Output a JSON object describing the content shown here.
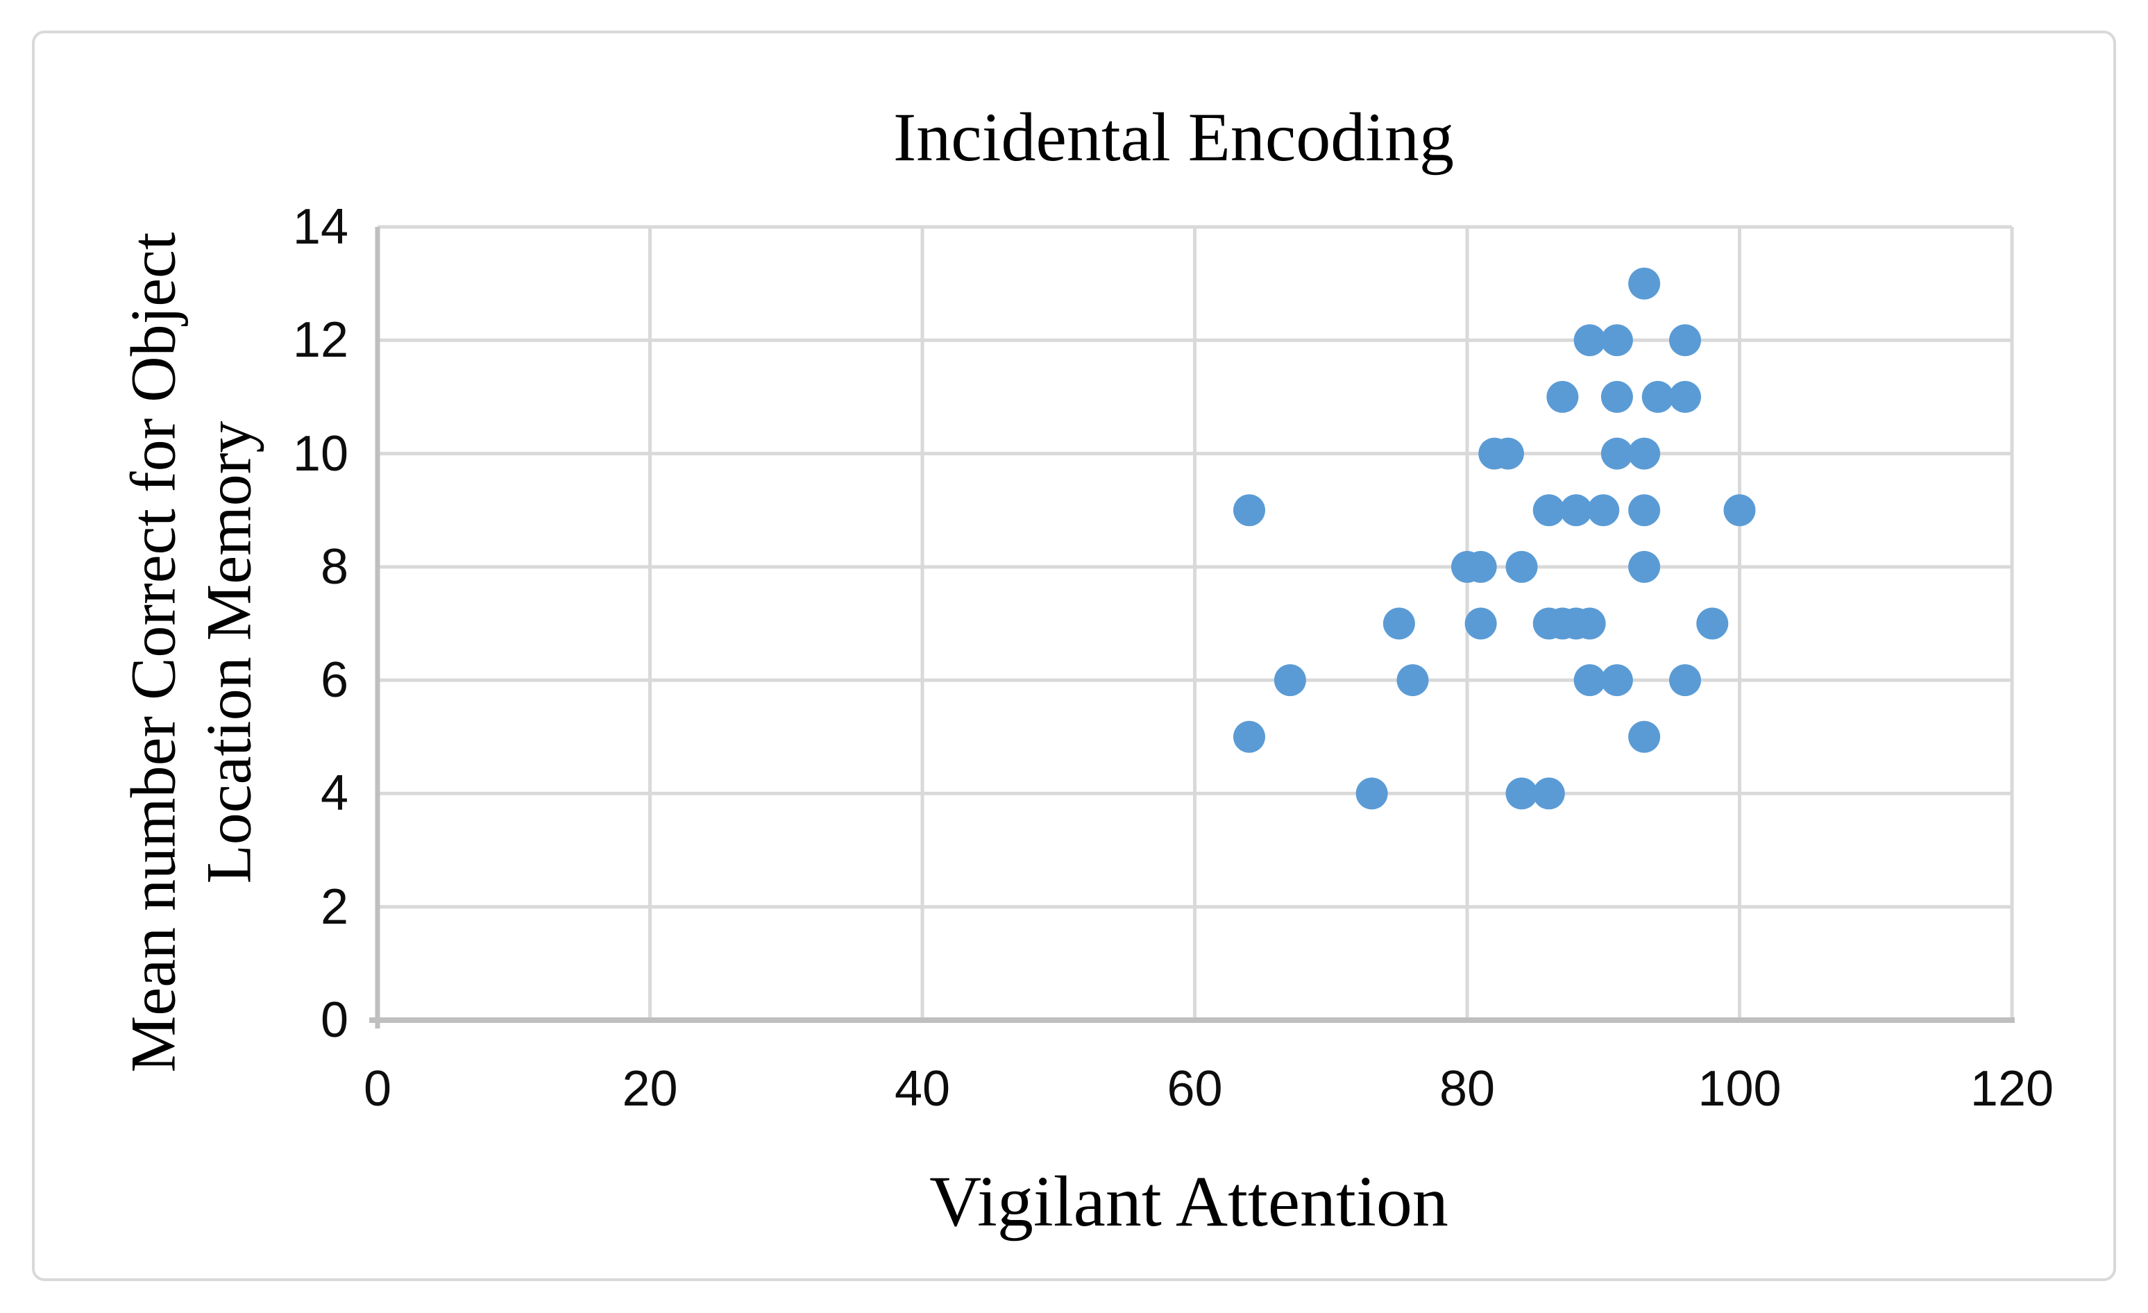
{
  "chart_data": {
    "type": "scatter",
    "title": "Incidental Encoding",
    "xlabel": "Vigilant Attention",
    "ylabel_line1": "Mean number Correct for Object",
    "ylabel_line2": "Location Memory",
    "xlim": [
      0,
      120
    ],
    "ylim": [
      0,
      14
    ],
    "x_ticks": [
      0,
      20,
      40,
      60,
      80,
      100,
      120
    ],
    "y_ticks": [
      0,
      2,
      4,
      6,
      8,
      10,
      12,
      14
    ],
    "grid": true,
    "legend_position": "none",
    "marker": {
      "shape": "circle",
      "color": "#5B9BD5",
      "radius_px": 23
    },
    "colors": {
      "gridline": "#D9D9D9",
      "axis_line": "#BFBFBF",
      "chart_border": "#D9D9D9",
      "text": "#000000",
      "background": "#FFFFFF"
    },
    "points": [
      [
        64,
        5
      ],
      [
        64,
        9
      ],
      [
        67,
        6
      ],
      [
        73,
        4
      ],
      [
        75,
        7
      ],
      [
        76,
        6
      ],
      [
        80,
        8
      ],
      [
        81,
        7
      ],
      [
        81,
        8
      ],
      [
        82,
        10
      ],
      [
        83,
        10
      ],
      [
        84,
        4
      ],
      [
        84,
        8
      ],
      [
        86,
        4
      ],
      [
        86,
        7
      ],
      [
        86,
        9
      ],
      [
        87,
        7
      ],
      [
        87,
        11
      ],
      [
        88,
        7
      ],
      [
        88,
        9
      ],
      [
        89,
        6
      ],
      [
        89,
        7
      ],
      [
        89,
        12
      ],
      [
        90,
        9
      ],
      [
        91,
        6
      ],
      [
        91,
        10
      ],
      [
        91,
        11
      ],
      [
        91,
        12
      ],
      [
        93,
        5
      ],
      [
        93,
        8
      ],
      [
        93,
        9
      ],
      [
        93,
        10
      ],
      [
        93,
        13
      ],
      [
        94,
        11
      ],
      [
        96,
        6
      ],
      [
        96,
        11
      ],
      [
        96,
        12
      ],
      [
        98,
        7
      ],
      [
        100,
        9
      ]
    ]
  }
}
